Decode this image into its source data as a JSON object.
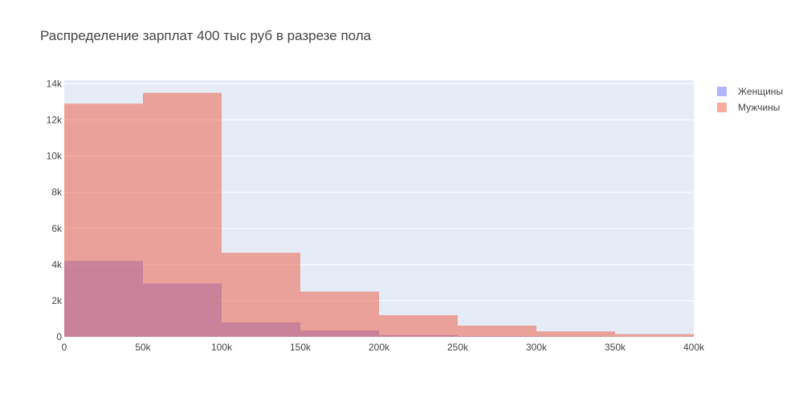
{
  "chart_data": {
    "type": "bar",
    "title": "Распределение зарплат 400 тыс руб в разрезе пола",
    "xlabel": "",
    "ylabel": "",
    "bin_edges": [
      0,
      50000,
      100000,
      150000,
      200000,
      250000,
      300000,
      350000,
      400000
    ],
    "xlim": [
      0,
      400000
    ],
    "ylim": [
      0,
      14200
    ],
    "x_tick_values": [
      0,
      50000,
      100000,
      150000,
      200000,
      250000,
      300000,
      350000,
      400000
    ],
    "x_tick_labels": [
      "0",
      "50k",
      "100k",
      "150k",
      "200k",
      "250k",
      "300k",
      "350k",
      "400k"
    ],
    "y_tick_values": [
      0,
      2000,
      4000,
      6000,
      8000,
      10000,
      12000,
      14000
    ],
    "y_tick_labels": [
      "0",
      "2k",
      "4k",
      "6k",
      "8k",
      "10k",
      "12k",
      "14k"
    ],
    "barmode": "overlay",
    "grid": true,
    "legend_position": "top-right",
    "plot_background": "#e5ecf6",
    "series": [
      {
        "name": "Женщины",
        "color": "#636efa",
        "values": [
          4200,
          2950,
          800,
          350,
          100,
          40,
          20,
          10
        ]
      },
      {
        "name": "Мужчины",
        "color": "#ef553b",
        "values": [
          12900,
          13500,
          4650,
          2500,
          1200,
          620,
          300,
          150
        ]
      }
    ]
  }
}
